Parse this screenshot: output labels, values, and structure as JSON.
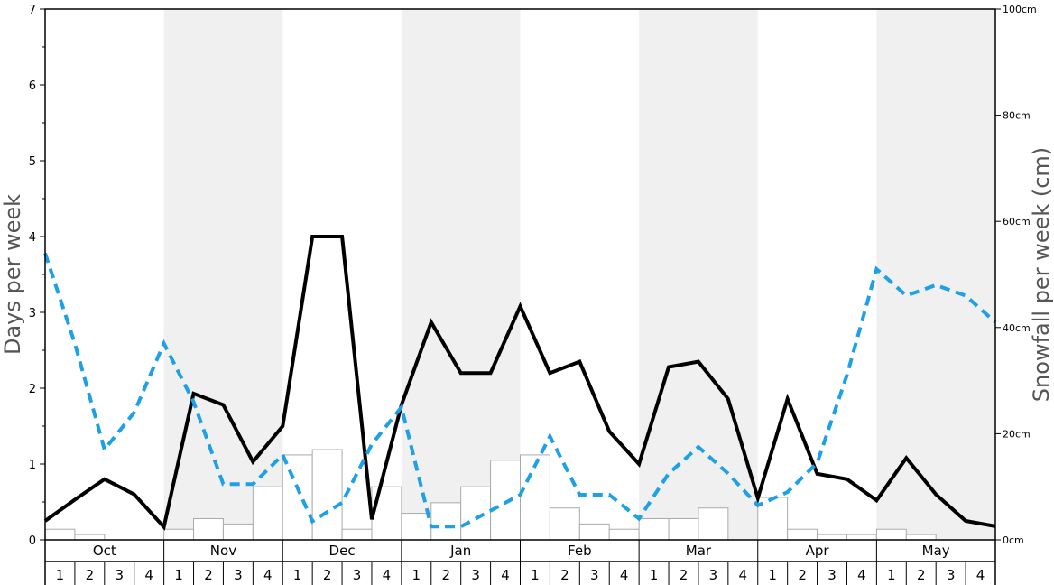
{
  "chart_data": {
    "type": "bar",
    "xlabel": "",
    "ylabel": "Days per week",
    "y2label": "Snowfall per week (cm)",
    "ylim": [
      0,
      7
    ],
    "y2lim": [
      0,
      100
    ],
    "y_ticks": [
      "0",
      "1",
      "2",
      "3",
      "4",
      "5",
      "6",
      "7"
    ],
    "y2_ticks": [
      "0cm",
      "20cm",
      "40cm",
      "60cm",
      "80cm",
      "100cm"
    ],
    "y2_tick_values": [
      0,
      20,
      40,
      60,
      80,
      100
    ],
    "months": [
      "Oct",
      "Nov",
      "Dec",
      "Jan",
      "Feb",
      "Mar",
      "Apr",
      "May"
    ],
    "weeks": [
      "1",
      "2",
      "3",
      "4"
    ],
    "shaded_months": [
      "Nov",
      "Jan",
      "Mar",
      "May"
    ],
    "grid": false,
    "legend": "none",
    "colors": {
      "line": "#000000",
      "dashed": "#1ea0e6",
      "bar_stroke": "#aaaaaa",
      "shade": "#f0f0f0"
    },
    "series": [
      {
        "type": "bar",
        "axis": "left",
        "values": [
          0.14,
          0.07,
          0,
          0,
          0.14,
          0.28,
          0.21,
          0.7,
          1.12,
          1.19,
          0.14,
          0.7,
          0.35,
          0.49,
          0.7,
          1.05,
          1.12,
          0.42,
          0.21,
          0.14,
          0.28,
          0.28,
          0.42,
          0,
          0.56,
          0.14,
          0.07,
          0.07,
          0.14,
          0.07,
          0,
          0
        ]
      },
      {
        "type": "line",
        "axis": "left",
        "values": [
          0.25,
          0.53,
          0.8,
          0.6,
          0.17,
          1.93,
          1.78,
          1.03,
          1.5,
          4.0,
          4.0,
          0.27,
          1.78,
          2.87,
          2.2,
          2.2,
          3.08,
          2.2,
          2.35,
          1.43,
          1.0,
          2.28,
          2.35,
          1.86,
          0.55,
          1.86,
          0.87,
          0.8,
          0.52,
          1.08,
          0.6,
          0.25,
          0.18
        ]
      },
      {
        "type": "line",
        "style": "dashed",
        "axis": "right",
        "values": [
          54,
          37,
          17,
          24,
          37,
          26,
          10.5,
          10.5,
          16,
          3.5,
          7,
          18,
          25,
          2.5,
          2.5,
          5.5,
          8.5,
          19.5,
          8.5,
          8.5,
          4,
          12.5,
          17.5,
          12.5,
          6.5,
          9,
          14.5,
          31,
          51,
          46,
          48,
          46,
          41
        ]
      }
    ]
  }
}
